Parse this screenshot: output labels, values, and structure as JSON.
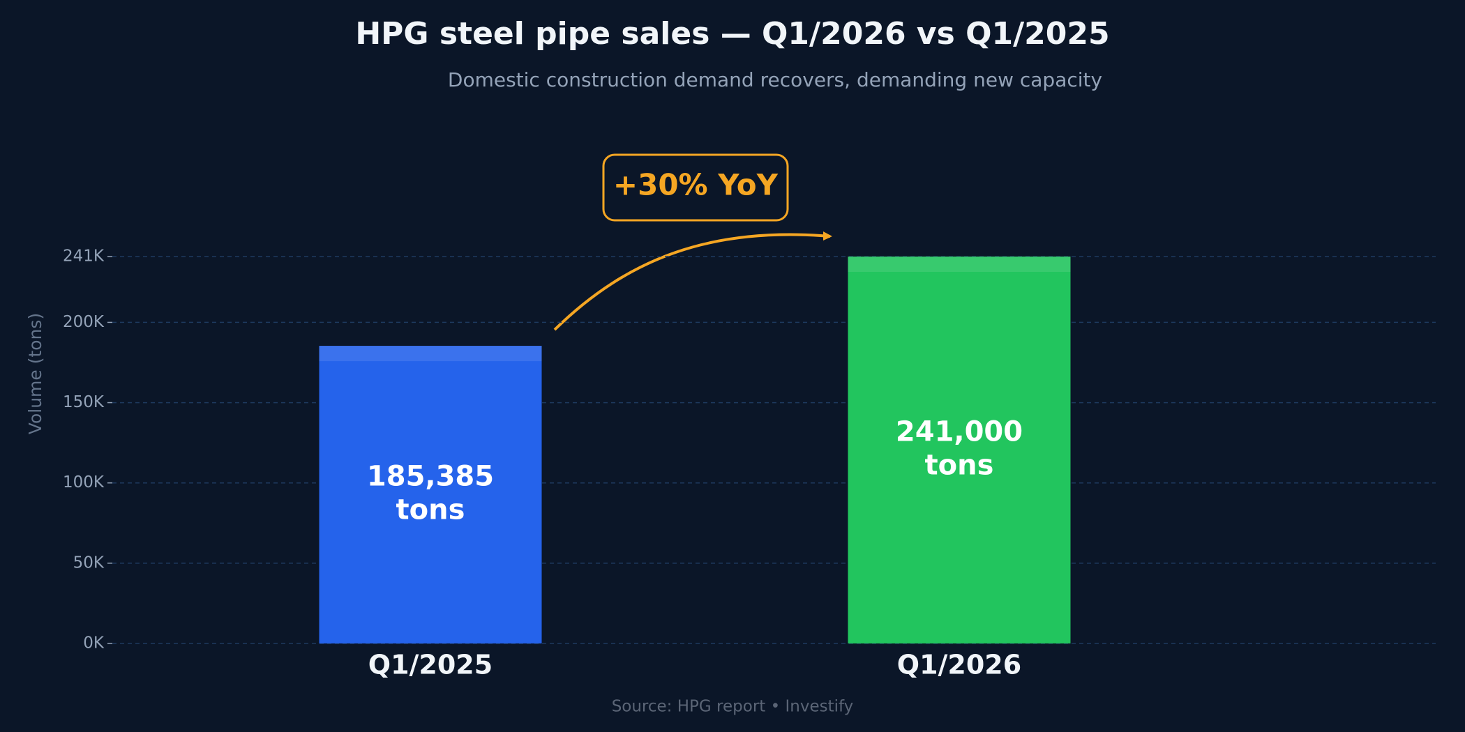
{
  "chart_data": {
    "type": "bar",
    "title": "HPG steel pipe sales — Q1/2026 vs Q1/2025",
    "subtitle": "Domestic construction demand recovers, demanding new capacity",
    "y_label": "Volume (tons)",
    "categories": [
      "Q1/2025",
      "Q1/2026"
    ],
    "values": [
      185385,
      241000
    ],
    "value_labels": [
      "185,385 tons",
      "241,000 tons"
    ],
    "colors": [
      "#2563eb",
      "#22c55e"
    ],
    "annotation": "+30% YoY",
    "source": "Source: HPG report  •  Investify",
    "ylim": [
      0,
      241000
    ],
    "yticks": [
      {
        "value": 0,
        "label": "0K"
      },
      {
        "value": 50000,
        "label": "50K"
      },
      {
        "value": 100000,
        "label": "100K"
      },
      {
        "value": 150000,
        "label": "150K"
      },
      {
        "value": 200000,
        "label": "200K"
      },
      {
        "value": 241000,
        "label": "241K"
      }
    ],
    "grid": true
  }
}
